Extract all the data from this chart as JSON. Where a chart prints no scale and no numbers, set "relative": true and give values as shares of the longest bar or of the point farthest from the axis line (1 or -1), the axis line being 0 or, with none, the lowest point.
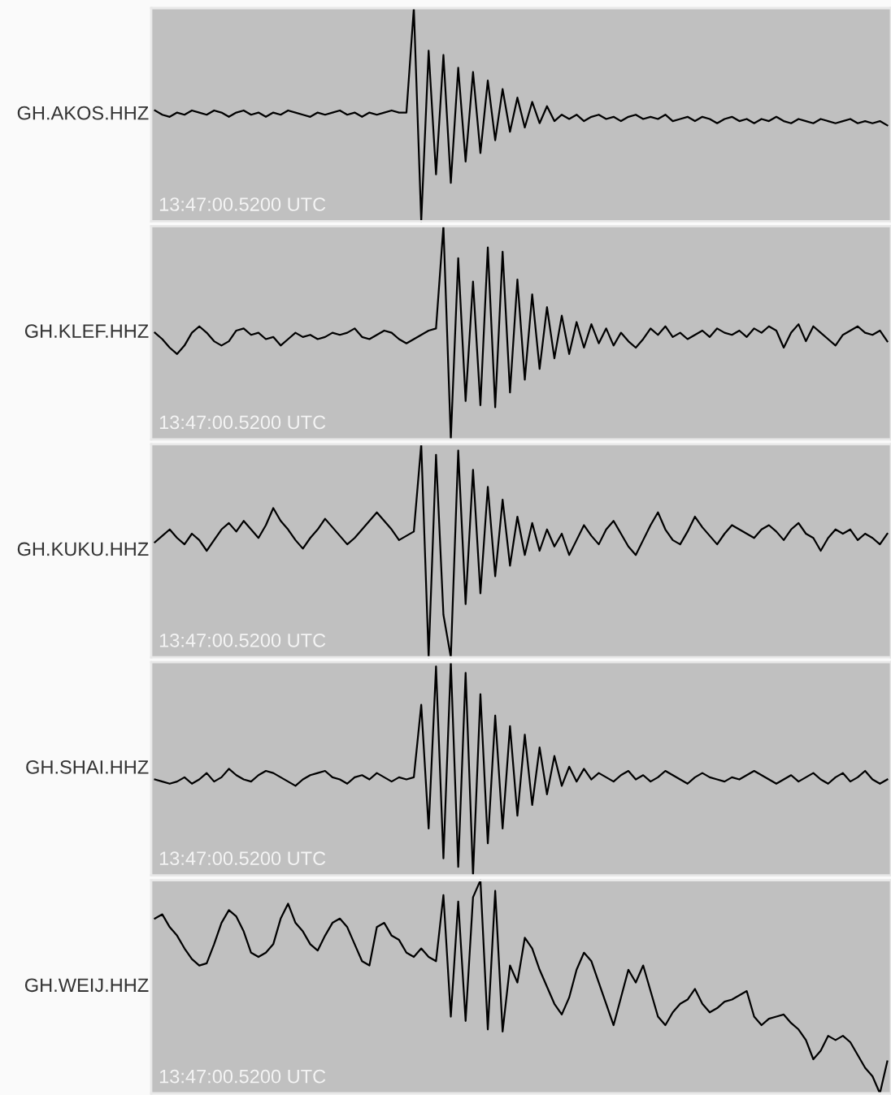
{
  "chart_data": [
    {
      "type": "line",
      "relative": true,
      "tick_labels": false,
      "ylabel": "GH.AKOS.HHZ",
      "annotations": [
        "13:47:00.5200 UTC"
      ],
      "categories": [
        null,
        null,
        null,
        null,
        null,
        null,
        null,
        null,
        null,
        null,
        null,
        null,
        null,
        null,
        null,
        null,
        null,
        null,
        null,
        null,
        null,
        null,
        null,
        null,
        null,
        null,
        null,
        null,
        null,
        null,
        null,
        null,
        null,
        null,
        null,
        null,
        null,
        null,
        null,
        null,
        null,
        null,
        null,
        null,
        null,
        null,
        null,
        null,
        null,
        null,
        null,
        null,
        null,
        null,
        null,
        null,
        null,
        null,
        null,
        null,
        null,
        null,
        null,
        null,
        null,
        null,
        null,
        null,
        null,
        null,
        null,
        null,
        null,
        null,
        null,
        null,
        null,
        null,
        null,
        null,
        null,
        null,
        null,
        null,
        null,
        null,
        null,
        null,
        null,
        null,
        null,
        null,
        null,
        null,
        null,
        null,
        null,
        null,
        null,
        null
      ],
      "series": [
        {
          "color": "#000000",
          "values": [
            0.52,
            0.5,
            0.49,
            0.51,
            0.5,
            0.52,
            0.51,
            0.5,
            0.52,
            0.51,
            0.49,
            0.51,
            0.52,
            0.5,
            0.51,
            0.49,
            0.51,
            0.5,
            0.52,
            0.51,
            0.5,
            0.49,
            0.51,
            0.5,
            0.51,
            0.52,
            0.5,
            0.51,
            0.49,
            0.51,
            0.5,
            0.51,
            0.52,
            0.51,
            0.51,
            1.0,
            0.0,
            0.8,
            0.22,
            0.78,
            0.18,
            0.72,
            0.28,
            0.7,
            0.32,
            0.66,
            0.38,
            0.62,
            0.42,
            0.58,
            0.44,
            0.56,
            0.46,
            0.54,
            0.47,
            0.5,
            0.48,
            0.5,
            0.47,
            0.49,
            0.5,
            0.48,
            0.49,
            0.47,
            0.49,
            0.5,
            0.48,
            0.49,
            0.48,
            0.5,
            0.47,
            0.48,
            0.49,
            0.47,
            0.49,
            0.48,
            0.46,
            0.48,
            0.49,
            0.47,
            0.48,
            0.46,
            0.48,
            0.47,
            0.49,
            0.47,
            0.46,
            0.48,
            0.47,
            0.46,
            0.48,
            0.47,
            0.46,
            0.47,
            0.48,
            0.46,
            0.47,
            0.46,
            0.47,
            0.45
          ]
        }
      ]
    },
    {
      "type": "line",
      "relative": true,
      "tick_labels": false,
      "ylabel": "GH.KLEF.HHZ",
      "annotations": [
        "13:47:00.5200 UTC"
      ],
      "categories": [
        null,
        null,
        null,
        null,
        null,
        null,
        null,
        null,
        null,
        null,
        null,
        null,
        null,
        null,
        null,
        null,
        null,
        null,
        null,
        null,
        null,
        null,
        null,
        null,
        null,
        null,
        null,
        null,
        null,
        null,
        null,
        null,
        null,
        null,
        null,
        null,
        null,
        null,
        null,
        null,
        null,
        null,
        null,
        null,
        null,
        null,
        null,
        null,
        null,
        null,
        null,
        null,
        null,
        null,
        null,
        null,
        null,
        null,
        null,
        null,
        null,
        null,
        null,
        null,
        null,
        null,
        null,
        null,
        null,
        null,
        null,
        null,
        null,
        null,
        null,
        null,
        null,
        null,
        null,
        null,
        null,
        null,
        null,
        null,
        null,
        null,
        null,
        null,
        null,
        null,
        null,
        null,
        null,
        null,
        null,
        null,
        null,
        null,
        null,
        null
      ],
      "series": [
        {
          "color": "#000000",
          "values": [
            0.5,
            0.47,
            0.43,
            0.4,
            0.44,
            0.5,
            0.53,
            0.5,
            0.46,
            0.44,
            0.46,
            0.51,
            0.52,
            0.49,
            0.5,
            0.47,
            0.48,
            0.44,
            0.47,
            0.5,
            0.48,
            0.49,
            0.47,
            0.48,
            0.5,
            0.49,
            0.5,
            0.52,
            0.48,
            0.47,
            0.49,
            0.51,
            0.5,
            0.47,
            0.45,
            0.47,
            0.49,
            0.51,
            0.52,
            1.0,
            0.0,
            0.85,
            0.18,
            0.74,
            0.16,
            0.9,
            0.15,
            0.88,
            0.22,
            0.75,
            0.28,
            0.68,
            0.33,
            0.62,
            0.38,
            0.58,
            0.4,
            0.55,
            0.43,
            0.54,
            0.45,
            0.52,
            0.44,
            0.5,
            0.46,
            0.43,
            0.47,
            0.52,
            0.49,
            0.53,
            0.48,
            0.5,
            0.47,
            0.49,
            0.51,
            0.48,
            0.52,
            0.5,
            0.49,
            0.51,
            0.48,
            0.52,
            0.5,
            0.53,
            0.51,
            0.43,
            0.5,
            0.54,
            0.46,
            0.53,
            0.5,
            0.47,
            0.44,
            0.49,
            0.51,
            0.53,
            0.5,
            0.49,
            0.51,
            0.46
          ]
        }
      ]
    },
    {
      "type": "line",
      "relative": true,
      "tick_labels": false,
      "ylabel": "GH.KUKU.HHZ",
      "annotations": [
        "13:47:00.5200 UTC"
      ],
      "categories": [
        null,
        null,
        null,
        null,
        null,
        null,
        null,
        null,
        null,
        null,
        null,
        null,
        null,
        null,
        null,
        null,
        null,
        null,
        null,
        null,
        null,
        null,
        null,
        null,
        null,
        null,
        null,
        null,
        null,
        null,
        null,
        null,
        null,
        null,
        null,
        null,
        null,
        null,
        null,
        null,
        null,
        null,
        null,
        null,
        null,
        null,
        null,
        null,
        null,
        null,
        null,
        null,
        null,
        null,
        null,
        null,
        null,
        null,
        null,
        null,
        null,
        null,
        null,
        null,
        null,
        null,
        null,
        null,
        null,
        null,
        null,
        null,
        null,
        null,
        null,
        null,
        null,
        null,
        null,
        null,
        null,
        null,
        null,
        null,
        null,
        null,
        null,
        null,
        null,
        null,
        null,
        null,
        null,
        null,
        null,
        null,
        null,
        null,
        null,
        null
      ],
      "series": [
        {
          "color": "#000000",
          "values": [
            0.54,
            0.57,
            0.6,
            0.56,
            0.53,
            0.58,
            0.55,
            0.5,
            0.55,
            0.6,
            0.63,
            0.59,
            0.64,
            0.6,
            0.56,
            0.62,
            0.7,
            0.64,
            0.6,
            0.55,
            0.51,
            0.56,
            0.6,
            0.65,
            0.61,
            0.57,
            0.53,
            0.56,
            0.6,
            0.64,
            0.68,
            0.64,
            0.6,
            0.55,
            0.57,
            0.59,
            1.0,
            0.0,
            0.95,
            0.2,
            0.0,
            0.97,
            0.25,
            0.88,
            0.3,
            0.8,
            0.38,
            0.74,
            0.43,
            0.66,
            0.48,
            0.63,
            0.5,
            0.6,
            0.52,
            0.58,
            0.48,
            0.55,
            0.62,
            0.57,
            0.53,
            0.6,
            0.64,
            0.58,
            0.52,
            0.48,
            0.55,
            0.62,
            0.68,
            0.6,
            0.55,
            0.53,
            0.59,
            0.66,
            0.61,
            0.57,
            0.53,
            0.58,
            0.62,
            0.6,
            0.58,
            0.56,
            0.6,
            0.62,
            0.59,
            0.55,
            0.6,
            0.63,
            0.58,
            0.56,
            0.5,
            0.56,
            0.6,
            0.58,
            0.6,
            0.55,
            0.58,
            0.56,
            0.53,
            0.58
          ]
        }
      ]
    },
    {
      "type": "line",
      "relative": true,
      "tick_labels": false,
      "ylabel": "GH.SHAI.HHZ",
      "annotations": [
        "13:47:00.5200 UTC"
      ],
      "categories": [
        null,
        null,
        null,
        null,
        null,
        null,
        null,
        null,
        null,
        null,
        null,
        null,
        null,
        null,
        null,
        null,
        null,
        null,
        null,
        null,
        null,
        null,
        null,
        null,
        null,
        null,
        null,
        null,
        null,
        null,
        null,
        null,
        null,
        null,
        null,
        null,
        null,
        null,
        null,
        null,
        null,
        null,
        null,
        null,
        null,
        null,
        null,
        null,
        null,
        null,
        null,
        null,
        null,
        null,
        null,
        null,
        null,
        null,
        null,
        null,
        null,
        null,
        null,
        null,
        null,
        null,
        null,
        null,
        null,
        null,
        null,
        null,
        null,
        null,
        null,
        null,
        null,
        null,
        null,
        null,
        null,
        null,
        null,
        null,
        null,
        null,
        null,
        null,
        null,
        null,
        null,
        null,
        null,
        null,
        null,
        null,
        null,
        null,
        null,
        null
      ],
      "series": [
        {
          "color": "#000000",
          "values": [
            0.45,
            0.44,
            0.43,
            0.44,
            0.46,
            0.43,
            0.45,
            0.48,
            0.44,
            0.46,
            0.5,
            0.47,
            0.45,
            0.44,
            0.47,
            0.49,
            0.48,
            0.46,
            0.44,
            0.42,
            0.45,
            0.47,
            0.48,
            0.49,
            0.46,
            0.45,
            0.43,
            0.46,
            0.47,
            0.45,
            0.48,
            0.46,
            0.44,
            0.46,
            0.45,
            0.46,
            0.8,
            0.22,
            0.98,
            0.08,
            1.0,
            0.04,
            0.95,
            0.0,
            0.85,
            0.15,
            0.75,
            0.22,
            0.7,
            0.28,
            0.66,
            0.33,
            0.6,
            0.38,
            0.56,
            0.42,
            0.51,
            0.44,
            0.5,
            0.45,
            0.48,
            0.46,
            0.44,
            0.47,
            0.49,
            0.45,
            0.47,
            0.44,
            0.46,
            0.49,
            0.47,
            0.45,
            0.43,
            0.46,
            0.48,
            0.46,
            0.45,
            0.44,
            0.46,
            0.45,
            0.47,
            0.49,
            0.47,
            0.45,
            0.43,
            0.45,
            0.47,
            0.44,
            0.46,
            0.48,
            0.45,
            0.43,
            0.46,
            0.48,
            0.44,
            0.46,
            0.49,
            0.45,
            0.43,
            0.45
          ]
        }
      ]
    },
    {
      "type": "line",
      "relative": true,
      "tick_labels": false,
      "ylabel": "GH.WEIJ.HHZ",
      "annotations": [
        "13:47:00.5200 UTC"
      ],
      "categories": [
        null,
        null,
        null,
        null,
        null,
        null,
        null,
        null,
        null,
        null,
        null,
        null,
        null,
        null,
        null,
        null,
        null,
        null,
        null,
        null,
        null,
        null,
        null,
        null,
        null,
        null,
        null,
        null,
        null,
        null,
        null,
        null,
        null,
        null,
        null,
        null,
        null,
        null,
        null,
        null,
        null,
        null,
        null,
        null,
        null,
        null,
        null,
        null,
        null,
        null,
        null,
        null,
        null,
        null,
        null,
        null,
        null,
        null,
        null,
        null,
        null,
        null,
        null,
        null,
        null,
        null,
        null,
        null,
        null,
        null,
        null,
        null,
        null,
        null,
        null,
        null,
        null,
        null,
        null,
        null,
        null,
        null,
        null,
        null,
        null,
        null,
        null,
        null,
        null,
        null,
        null,
        null,
        null,
        null,
        null,
        null,
        null,
        null,
        null,
        null
      ],
      "series": [
        {
          "color": "#000000",
          "values": [
            0.82,
            0.84,
            0.78,
            0.74,
            0.68,
            0.63,
            0.6,
            0.61,
            0.7,
            0.8,
            0.86,
            0.83,
            0.76,
            0.66,
            0.64,
            0.66,
            0.7,
            0.82,
            0.89,
            0.8,
            0.76,
            0.7,
            0.67,
            0.74,
            0.8,
            0.82,
            0.78,
            0.7,
            0.62,
            0.6,
            0.78,
            0.8,
            0.74,
            0.72,
            0.66,
            0.64,
            0.68,
            0.64,
            0.62,
            0.93,
            0.36,
            0.9,
            0.34,
            0.92,
            1.0,
            0.3,
            0.95,
            0.29,
            0.6,
            0.52,
            0.73,
            0.68,
            0.58,
            0.5,
            0.42,
            0.37,
            0.45,
            0.58,
            0.66,
            0.62,
            0.52,
            0.42,
            0.32,
            0.45,
            0.58,
            0.52,
            0.6,
            0.48,
            0.36,
            0.32,
            0.38,
            0.42,
            0.44,
            0.49,
            0.42,
            0.38,
            0.4,
            0.43,
            0.44,
            0.46,
            0.48,
            0.36,
            0.32,
            0.35,
            0.36,
            0.37,
            0.33,
            0.3,
            0.25,
            0.16,
            0.2,
            0.27,
            0.25,
            0.27,
            0.24,
            0.18,
            0.12,
            0.08,
            0.0,
            0.15
          ]
        }
      ]
    }
  ]
}
